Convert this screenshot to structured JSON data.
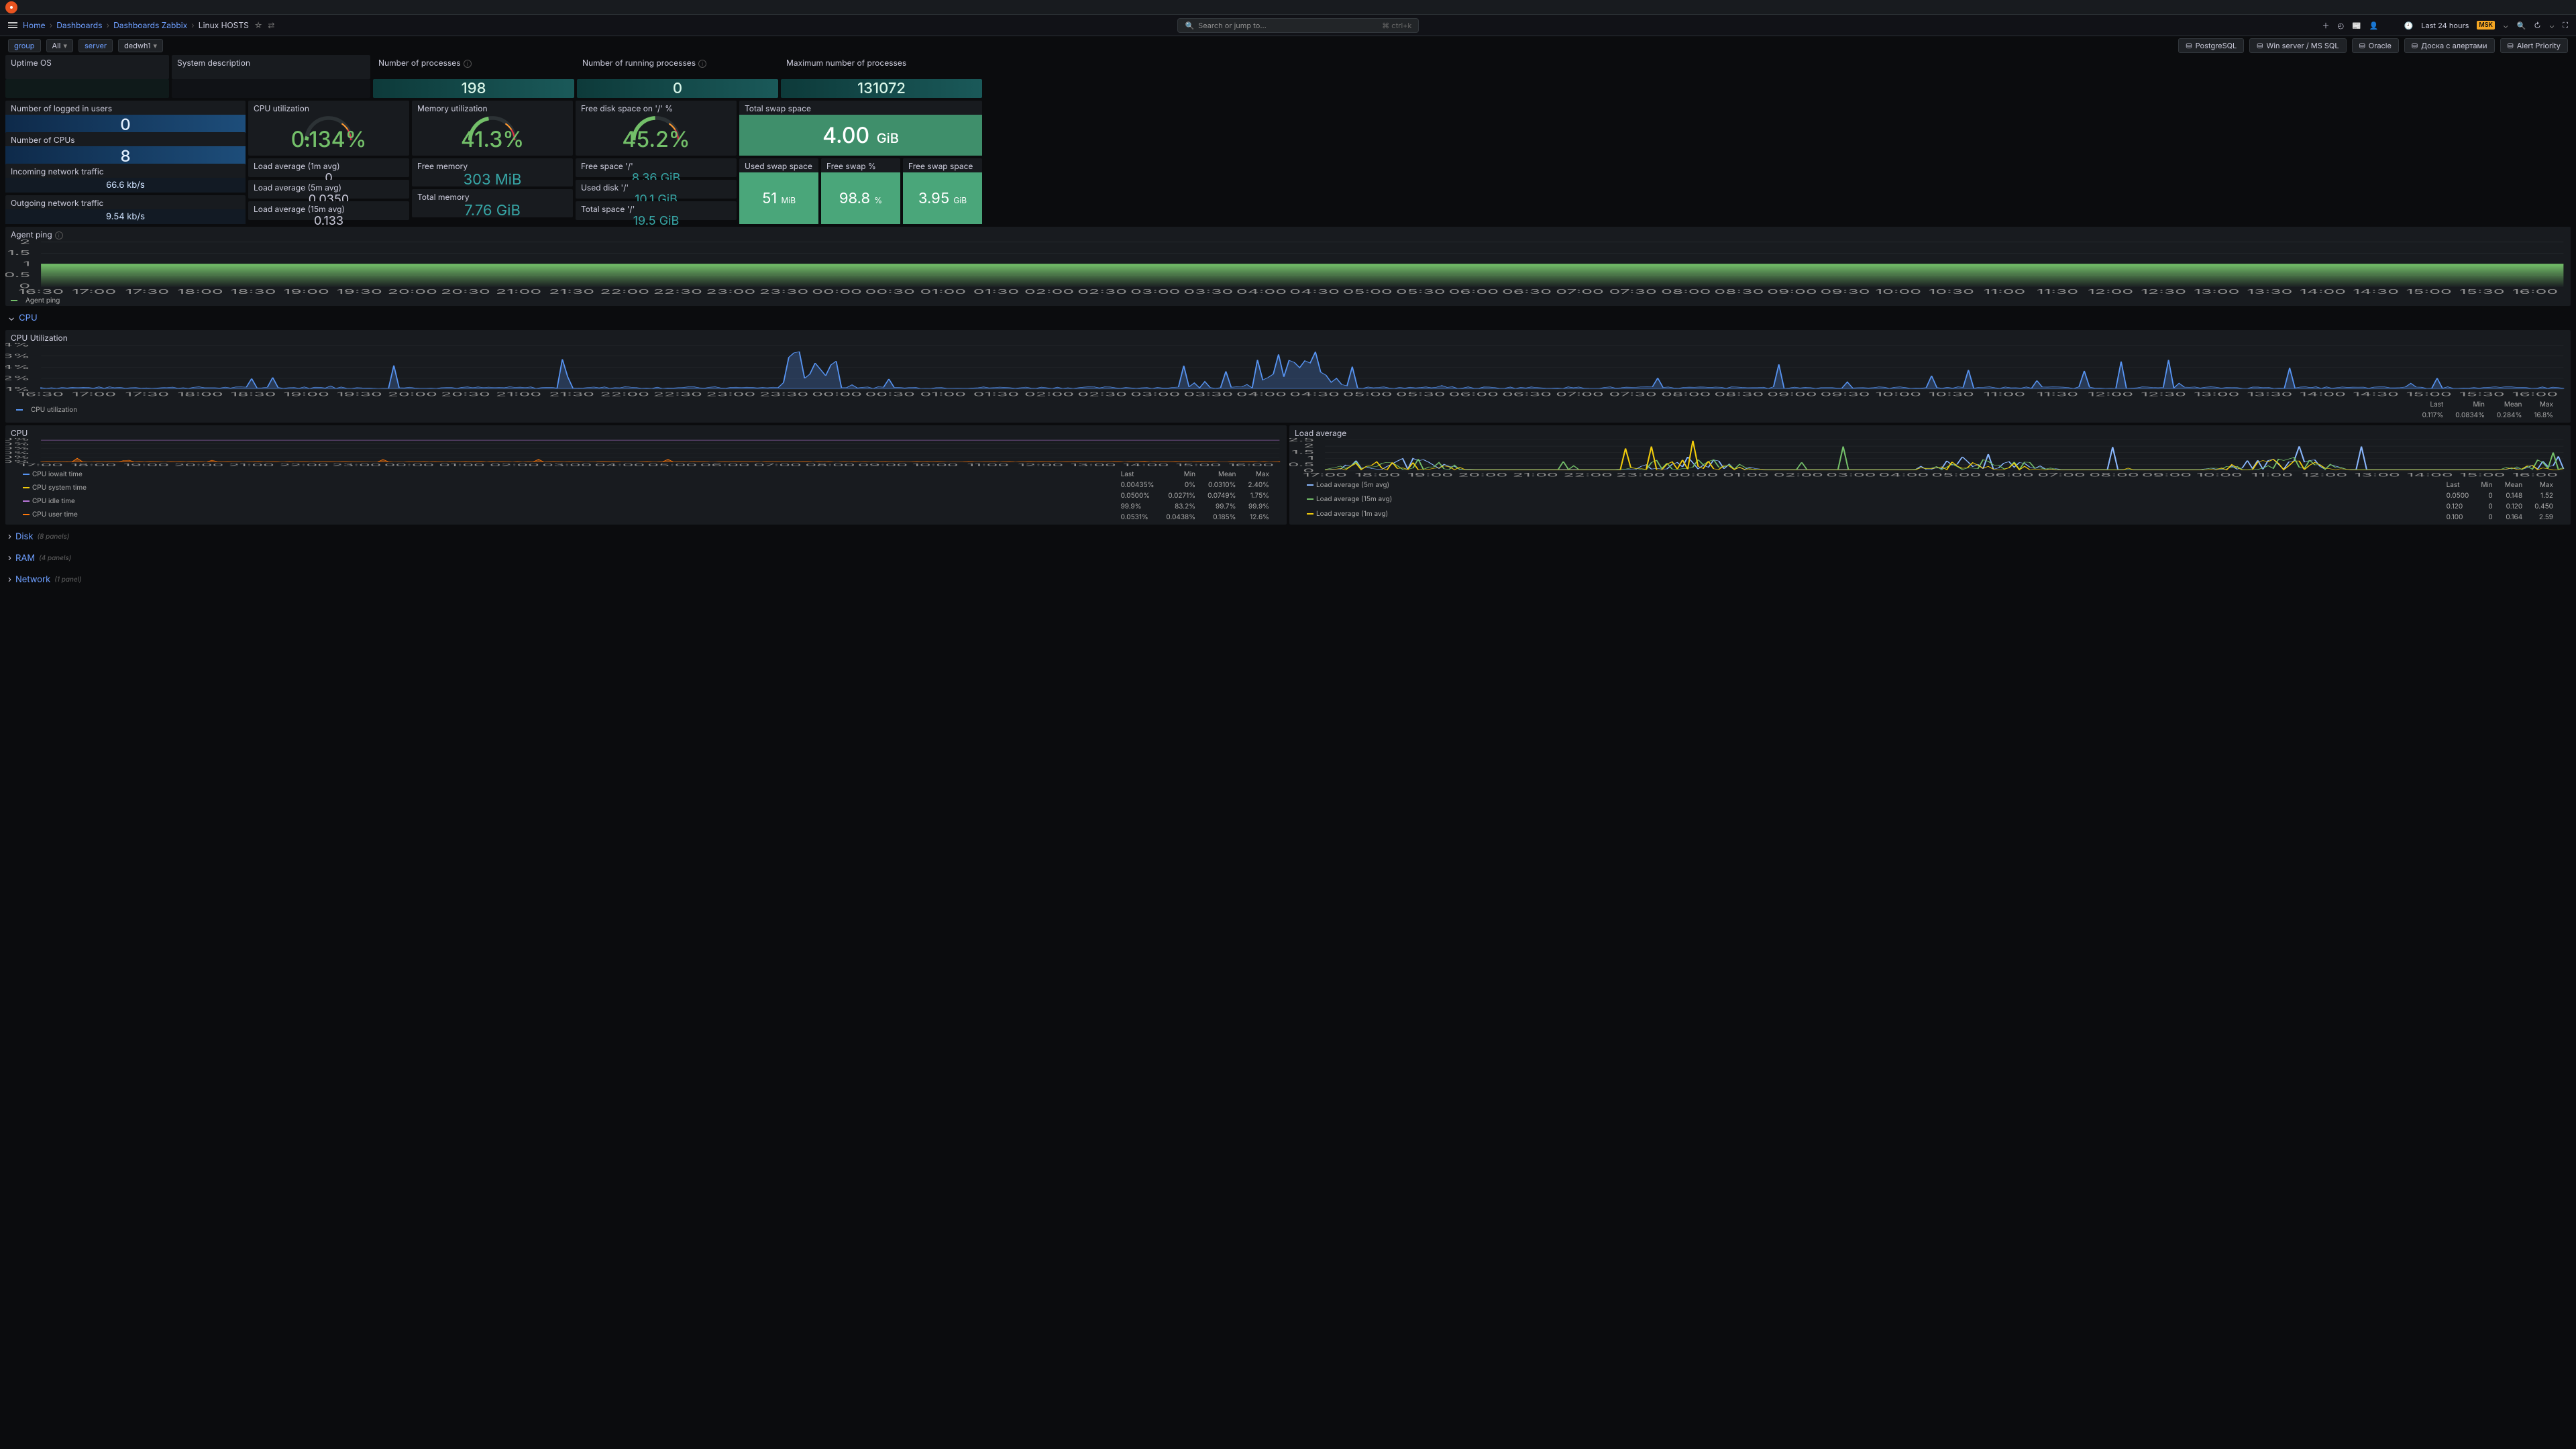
{
  "breadcrumb": {
    "home": "Home",
    "l1": "Dashboards",
    "l2": "Dashboards Zabbix",
    "cur": "Linux HOSTS"
  },
  "search": {
    "placeholder": "Search or jump to...",
    "kbd": "ctrl+k"
  },
  "time": {
    "range": "Last 24 hours",
    "tz": "MSK"
  },
  "vars": {
    "group_lbl": "group",
    "group_v": "All",
    "server_lbl": "server",
    "server_v": "dedwh1"
  },
  "links": {
    "pg": "PostgreSQL",
    "win": "Win server / MS SQL",
    "oracle": "Oracle",
    "alerts": "Доска с алертами",
    "prio": "Alert Priority"
  },
  "r1": {
    "uptime": {
      "t": "Uptime OS",
      "v": ""
    },
    "sysdesc": {
      "t": "System description",
      "v": ""
    },
    "nproc": {
      "t": "Number of processes",
      "v": "198"
    },
    "nrun": {
      "t": "Number of running processes",
      "v": "0"
    },
    "maxp": {
      "t": "Maximum number of processes",
      "v": "131072"
    }
  },
  "leftcol": {
    "logged": {
      "t": "Number of logged in users",
      "v": "0"
    },
    "cpus": {
      "t": "Number of CPUs",
      "v": "8"
    },
    "in": {
      "t": "Incoming network traffic",
      "v": "66.6",
      "u": "kb/s"
    },
    "out": {
      "t": "Outgoing network traffic",
      "v": "9.54",
      "u": "kb/s"
    }
  },
  "centre": {
    "cpu": {
      "t": "CPU utilization",
      "v": "0.134%",
      "g": 0.5
    },
    "la1": {
      "t": "Load average (1m avg)",
      "v": "0"
    },
    "la5": {
      "t": "Load average (5m avg)",
      "v": "0.0350"
    },
    "la15": {
      "t": "Load average (15m avg)",
      "v": "0.133"
    },
    "mem": {
      "t": "Memory utilization",
      "v": "41.3%",
      "g": 41.3
    },
    "freem": {
      "t": "Free memory",
      "v": "303",
      "u": "MiB"
    },
    "totm": {
      "t": "Total memory",
      "v": "7.76",
      "u": "GiB"
    },
    "diskpct": {
      "t": "Free disk space on '/' %",
      "v": "45.2%",
      "g": 45.2
    },
    "freesp": {
      "t": "Free space '/'",
      "v": "8.36",
      "u": "GiB"
    },
    "usedd": {
      "t": "Used disk '/'",
      "v": "10.1",
      "u": "GiB"
    },
    "totsp": {
      "t": "Total space '/'",
      "v": "19.5",
      "u": "GiB"
    }
  },
  "swap": {
    "total": {
      "t": "Total swap space",
      "v": "4.00",
      "u": "GiB"
    },
    "used": {
      "t": "Used swap space",
      "v": "51",
      "u": "MiB"
    },
    "pct": {
      "t": "Free swap %",
      "v": "98.8",
      "u": "%"
    },
    "free": {
      "t": "Free swap space",
      "v": "3.95",
      "u": "GiB"
    }
  },
  "agentping": {
    "t": "Agent ping",
    "legend": "Agent ping",
    "ylabels": [
      "2",
      "1.5",
      "1",
      "0.5",
      "0"
    ]
  },
  "sectCPU": "CPU",
  "cpuutil": {
    "t": "CPU Utilization",
    "ylabels": [
      "64%",
      "16%",
      "4%",
      "2%",
      "1%"
    ],
    "legend": "CPU utilization",
    "stats": {
      "last": "0.117%",
      "min": "0.0834%",
      "mean": "0.284%",
      "max": "16.8%"
    },
    "hdr": {
      "last": "Last",
      "min": "Min",
      "mean": "Mean",
      "max": "Max"
    }
  },
  "cpu": {
    "t": "CPU",
    "ylabels": [
      "100%",
      "80%",
      "60%",
      "40%",
      "20%",
      "0%"
    ],
    "series": [
      {
        "name": "CPU iowait time",
        "color": "#5794f2",
        "stats": [
          "0.00435%",
          "0%",
          "0.0310%",
          "2.40%"
        ]
      },
      {
        "name": "CPU system time",
        "color": "#f2cc0c",
        "stats": [
          "0.0500%",
          "0.0271%",
          "0.0749%",
          "1.75%"
        ]
      },
      {
        "name": "CPU idle time",
        "color": "#b877d9",
        "stats": [
          "99.9%",
          "83.2%",
          "99.7%",
          "99.9%"
        ]
      },
      {
        "name": "CPU user time",
        "color": "#ff780a",
        "stats": [
          "0.0531%",
          "0.0438%",
          "0.185%",
          "12.6%"
        ]
      }
    ],
    "hdr": {
      "last": "Last",
      "min": "Min",
      "mean": "Mean",
      "max": "Max"
    }
  },
  "la": {
    "t": "Load average",
    "ylabels": [
      "2.5",
      "2",
      "1.5",
      "1",
      "0.5",
      "0"
    ],
    "series": [
      {
        "name": "Load average (5m avg)",
        "color": "#8ab8ff",
        "stats": [
          "0.0500",
          "0",
          "0.148",
          "1.52"
        ]
      },
      {
        "name": "Load average (15m avg)",
        "color": "#73bf69",
        "stats": [
          "0.120",
          "0",
          "0.120",
          "0.450"
        ]
      },
      {
        "name": "Load average (1m avg)",
        "color": "#f2cc0c",
        "stats": [
          "0.100",
          "0",
          "0.164",
          "2.59"
        ]
      }
    ],
    "hdr": {
      "last": "Last",
      "min": "Min",
      "mean": "Mean",
      "max": "Max"
    }
  },
  "xticks": [
    "16:30",
    "17:00",
    "17:30",
    "18:00",
    "18:30",
    "19:00",
    "19:30",
    "20:00",
    "20:30",
    "21:00",
    "21:30",
    "22:00",
    "22:30",
    "23:00",
    "23:30",
    "00:00",
    "00:30",
    "01:00",
    "01:30",
    "02:00",
    "02:30",
    "03:00",
    "03:30",
    "04:00",
    "04:30",
    "05:00",
    "05:30",
    "06:00",
    "06:30",
    "07:00",
    "07:30",
    "08:00",
    "08:30",
    "09:00",
    "09:30",
    "10:00",
    "10:30",
    "11:00",
    "11:30",
    "12:00",
    "12:30",
    "13:00",
    "13:30",
    "14:00",
    "14:30",
    "15:00",
    "15:30",
    "16:00"
  ],
  "xticks2": [
    "17:00",
    "18:00",
    "19:00",
    "20:00",
    "21:00",
    "22:00",
    "23:00",
    "00:00",
    "01:00",
    "02:00",
    "03:00",
    "04:00",
    "05:00",
    "06:00",
    "07:00",
    "08:00",
    "09:00",
    "10:00",
    "11:00",
    "12:00",
    "13:00",
    "14:00",
    "15:00",
    "16:00"
  ],
  "rows": {
    "disk": {
      "t": "Disk",
      "m": "(8 panels)"
    },
    "ram": {
      "t": "RAM",
      "m": "(4 panels)"
    },
    "net": {
      "t": "Network",
      "m": "(1 panel)"
    }
  },
  "colors": {
    "green": "#73bf69",
    "blue": "#5794f2",
    "teal": "#1f7a7a",
    "panelGreen": "#56a178"
  }
}
